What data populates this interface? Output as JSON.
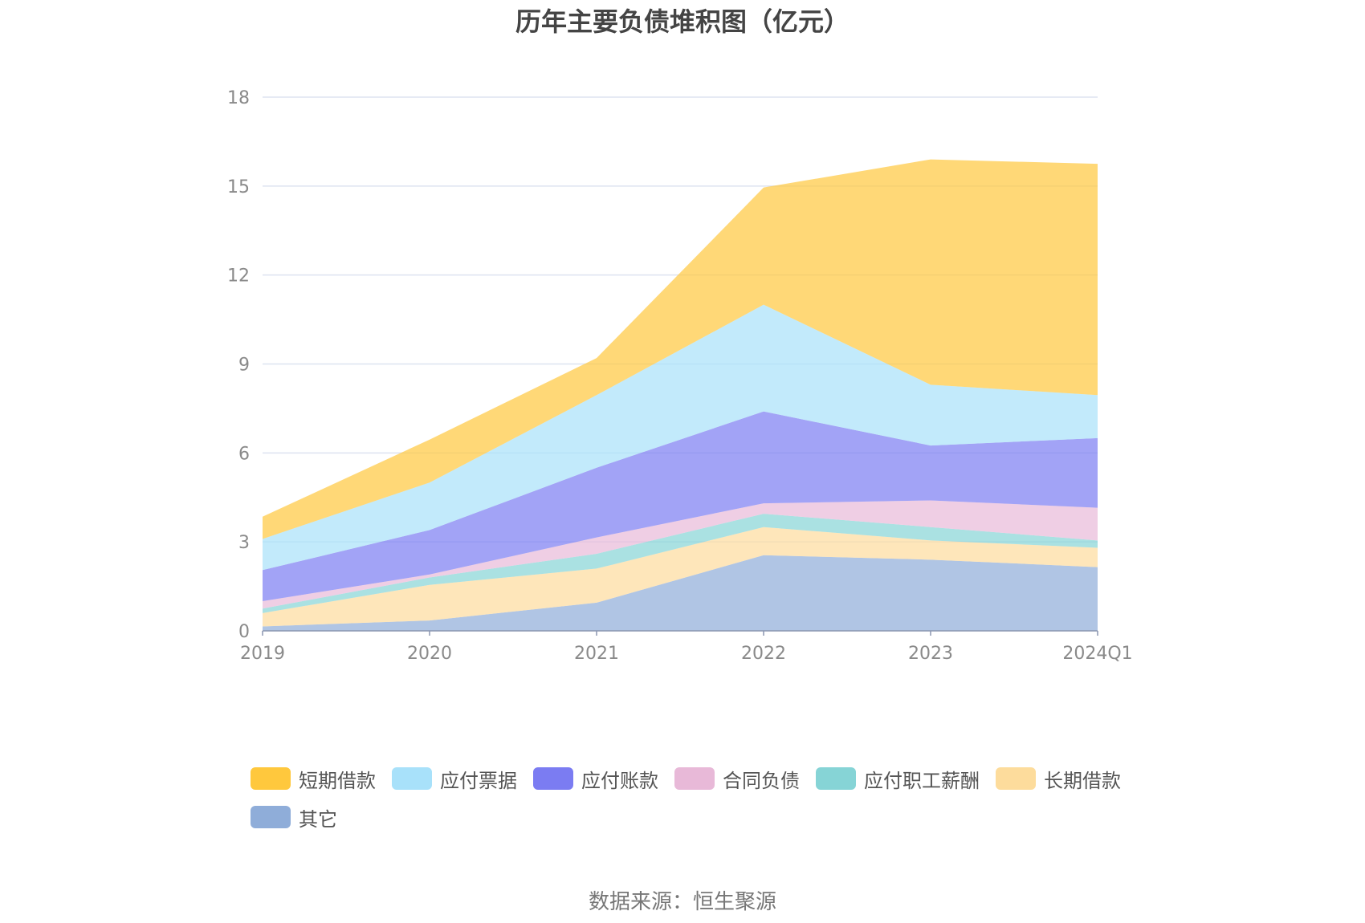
{
  "title": "历年主要负债堆积图（亿元）",
  "source": "数据来源：恒生聚源",
  "chart_data": {
    "type": "area",
    "stacked": true,
    "title": "历年主要负债堆积图（亿元）",
    "categories": [
      "2019",
      "2020",
      "2021",
      "2022",
      "2023",
      "2024Q1"
    ],
    "ylim": [
      0,
      18
    ],
    "yticks": [
      0,
      3,
      6,
      9,
      12,
      15,
      18
    ],
    "grid": true,
    "legend_position": "bottom",
    "series": [
      {
        "name": "其它",
        "color": "#8fadd9",
        "values": [
          0.15,
          0.35,
          0.95,
          2.55,
          2.4,
          2.15
        ]
      },
      {
        "name": "长期借款",
        "color": "#fddc9c",
        "values": [
          0.45,
          1.2,
          1.15,
          0.95,
          0.65,
          0.65
        ]
      },
      {
        "name": "应付职工薪酬",
        "color": "#86d4d6",
        "values": [
          0.15,
          0.25,
          0.5,
          0.45,
          0.45,
          0.25
        ]
      },
      {
        "name": "合同负债",
        "color": "#e8b9d8",
        "values": [
          0.25,
          0.1,
          0.55,
          0.35,
          0.9,
          1.1
        ]
      },
      {
        "name": "应付账款",
        "color": "#7b7cf2",
        "values": [
          1.05,
          1.5,
          2.35,
          3.1,
          1.85,
          2.35
        ]
      },
      {
        "name": "应付票据",
        "color": "#a8e1fa",
        "values": [
          1.05,
          1.6,
          2.45,
          3.6,
          2.05,
          1.45
        ]
      },
      {
        "name": "短期借款",
        "color": "#ffc83d",
        "values": [
          0.75,
          1.45,
          1.25,
          3.95,
          7.6,
          7.8
        ]
      }
    ],
    "legend_order": [
      "短期借款",
      "应付票据",
      "应付账款",
      "合同负债",
      "应付职工薪酬",
      "长期借款",
      "其它"
    ]
  }
}
